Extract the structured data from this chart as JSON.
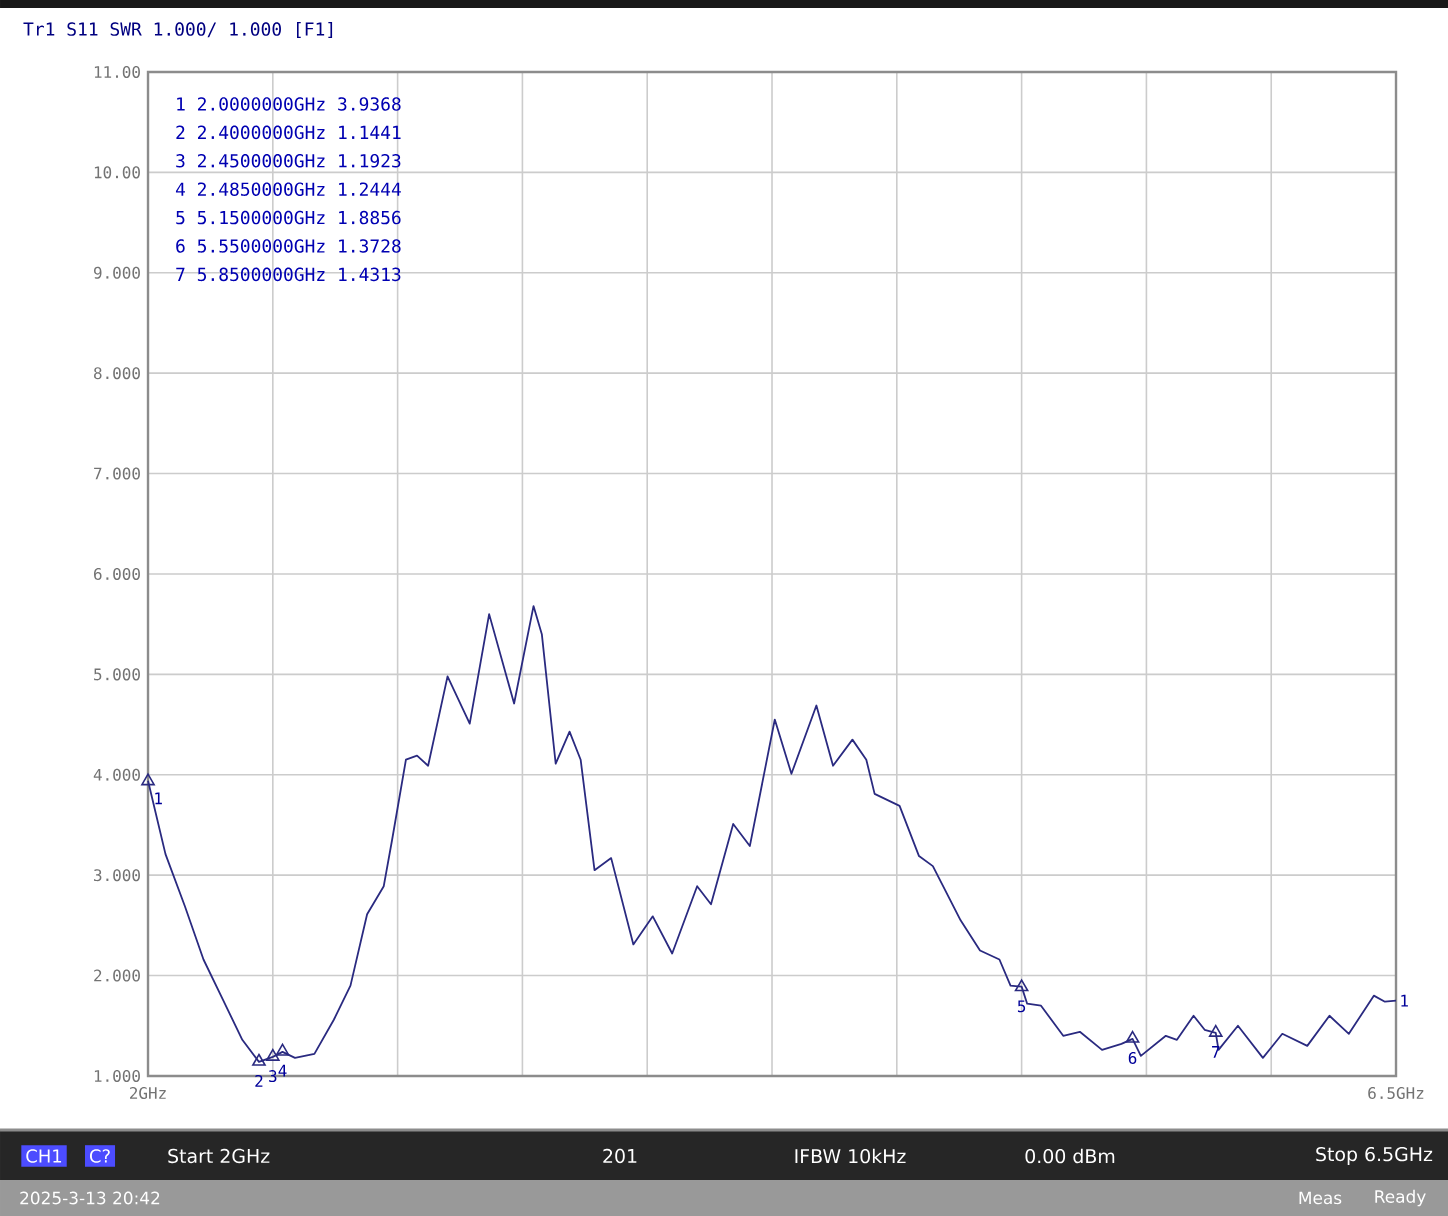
{
  "chart_data": {
    "type": "line",
    "title": "Tr1 S11 SWR 1.000/ 1.000 [F1]",
    "xlim": [
      2,
      6.5
    ],
    "ylim": [
      1,
      11
    ],
    "xticks": [
      {
        "value": 2,
        "label": "2GHz"
      },
      {
        "value": 2.45,
        "label": null
      },
      {
        "value": 2.9,
        "label": null
      },
      {
        "value": 3.35,
        "label": null
      },
      {
        "value": 3.8,
        "label": null
      },
      {
        "value": 4.25,
        "label": null
      },
      {
        "value": 4.7,
        "label": null
      },
      {
        "value": 5.15,
        "label": null
      },
      {
        "value": 5.6,
        "label": null
      },
      {
        "value": 6.05,
        "label": null
      },
      {
        "value": 6.5,
        "label": "6.5GHz"
      }
    ],
    "yticks": [
      {
        "value": 1,
        "label": "1.000"
      },
      {
        "value": 2,
        "label": "2.000"
      },
      {
        "value": 3,
        "label": "3.000"
      },
      {
        "value": 4,
        "label": "4.000"
      },
      {
        "value": 5,
        "label": "5.000"
      },
      {
        "value": 6,
        "label": "6.000"
      },
      {
        "value": 7,
        "label": "7.000"
      },
      {
        "value": 8,
        "label": "8.000"
      },
      {
        "value": 9,
        "label": "9.000"
      },
      {
        "value": 10,
        "label": "10.00"
      },
      {
        "value": 11,
        "label": "11.00"
      }
    ],
    "grid": true,
    "line_style": "solid",
    "series": [
      {
        "type": "line",
        "color": "#2a2a80",
        "x": [
          2.0,
          2.063,
          2.133,
          2.2,
          2.27,
          2.34,
          2.4,
          2.45,
          2.485,
          2.53,
          2.6,
          2.67,
          2.73,
          2.79,
          2.85,
          2.88,
          2.93,
          2.97,
          3.01,
          3.08,
          3.16,
          3.23,
          3.32,
          3.39,
          3.42,
          3.47,
          3.52,
          3.56,
          3.61,
          3.67,
          3.75,
          3.82,
          3.89,
          3.98,
          4.03,
          4.11,
          4.17,
          4.26,
          4.32,
          4.41,
          4.47,
          4.54,
          4.59,
          4.62,
          4.71,
          4.78,
          4.83,
          4.93,
          5.0,
          5.07,
          5.11,
          5.15,
          5.17,
          5.22,
          5.3,
          5.36,
          5.44,
          5.51,
          5.55,
          5.58,
          5.67,
          5.71,
          5.77,
          5.81,
          5.85,
          5.86,
          5.93,
          6.02,
          6.09,
          6.18,
          6.26,
          6.33,
          6.42,
          6.46,
          6.5
        ],
        "values": [
          3.94,
          3.21,
          2.69,
          2.16,
          1.76,
          1.36,
          1.14,
          1.19,
          1.24,
          1.18,
          1.22,
          1.56,
          1.9,
          2.61,
          2.89,
          3.35,
          4.15,
          4.19,
          4.09,
          4.98,
          4.51,
          5.6,
          4.71,
          5.68,
          5.4,
          4.11,
          4.43,
          4.15,
          3.05,
          3.17,
          2.31,
          2.59,
          2.22,
          2.89,
          2.71,
          3.51,
          3.29,
          4.55,
          4.01,
          4.69,
          4.09,
          4.35,
          4.15,
          3.81,
          3.69,
          3.19,
          3.09,
          2.55,
          2.25,
          2.16,
          1.9,
          1.89,
          1.72,
          1.7,
          1.4,
          1.44,
          1.26,
          1.32,
          1.37,
          1.2,
          1.4,
          1.36,
          1.6,
          1.46,
          1.43,
          1.26,
          1.5,
          1.18,
          1.42,
          1.3,
          1.6,
          1.42,
          1.8,
          1.74,
          1.75
        ]
      },
      {
        "type": "scatter",
        "marker": "triangle",
        "color": "#2a2a80",
        "x": [
          2.0,
          2.4,
          2.45,
          2.485,
          5.15,
          5.55,
          5.85
        ],
        "values": [
          3.9368,
          1.1441,
          1.1923,
          1.2444,
          1.8856,
          1.3728,
          1.4313
        ]
      }
    ],
    "annotations": [
      {
        "text": "1",
        "x": 2.0,
        "y": 3.9368
      },
      {
        "text": "2",
        "x": 2.4,
        "y": 1.1441
      },
      {
        "text": "3",
        "x": 2.45,
        "y": 1.1923
      },
      {
        "text": "4",
        "x": 2.485,
        "y": 1.2444
      },
      {
        "text": "5",
        "x": 5.15,
        "y": 1.8856
      },
      {
        "text": "6",
        "x": 5.55,
        "y": 1.3728
      },
      {
        "text": "7",
        "x": 5.85,
        "y": 1.4313
      },
      {
        "text": "1",
        "x": 6.5,
        "y": 1.75
      },
      "1 2.0000000GHz 3.9368",
      "2 2.4000000GHz 1.1441",
      "3 2.4500000GHz 1.1923",
      "4 2.4850000GHz 1.2444",
      "5 5.1500000GHz 1.8856",
      "6 5.5500000GHz 1.3728",
      "7 5.8500000GHz 1.4313",
      "CH1",
      "C?",
      "Start 2GHz",
      "201",
      "IFBW 10kHz",
      "0.00 dBm",
      "Stop 6.5GHz",
      "2025-3-13 20:42",
      "Meas",
      "Ready"
    ]
  }
}
